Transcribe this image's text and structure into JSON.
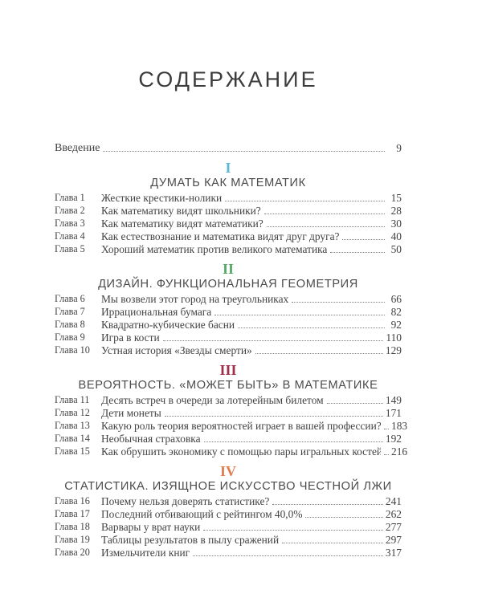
{
  "page_title": "СОДЕРЖАНИЕ",
  "intro": {
    "label": "Введение",
    "page": "9"
  },
  "text_color": "#424242",
  "sections": [
    {
      "numeral": "I",
      "color": "#5bb7d7",
      "heading": "ДУМАТЬ КАК МАТЕМАТИК",
      "chapters": [
        {
          "label": "Глава 1",
          "title": "Жесткие крестики-нолики",
          "page": "15"
        },
        {
          "label": "Глава 2",
          "title": "Как математику видят школьники?",
          "page": "28"
        },
        {
          "label": "Глава 3",
          "title": "Как математику видят математики?",
          "page": "30"
        },
        {
          "label": "Глава 4",
          "title": "Как естествознание и математика видят друг друга?",
          "page": "40"
        },
        {
          "label": "Глава 5",
          "title": "Хороший математик против великого математика",
          "page": "50"
        }
      ]
    },
    {
      "numeral": "II",
      "color": "#55a966",
      "heading": "ДИЗАЙН. ФУНКЦИОНАЛЬНАЯ ГЕОМЕТРИЯ",
      "chapters": [
        {
          "label": "Глава 6",
          "title": "Мы возвели этот город на треугольниках",
          "page": "66"
        },
        {
          "label": "Глава 7",
          "title": "Иррациональная бумага",
          "page": "82"
        },
        {
          "label": "Глава 8",
          "title": "Квадратно-кубические басни",
          "page": "92"
        },
        {
          "label": "Глава 9",
          "title": "Игра в кости",
          "page": "110"
        },
        {
          "label": "Глава 10",
          "title": "Устная история «Звезды смерти»",
          "page": "129"
        }
      ]
    },
    {
      "numeral": "III",
      "color": "#a22c49",
      "heading": "ВЕРОЯТНОСТЬ. «МОЖЕТ БЫТЬ» В МАТЕМАТИКЕ",
      "chapters": [
        {
          "label": "Глава 11",
          "title": "Десять встреч в очереди за лотерейным билетом",
          "page": "149"
        },
        {
          "label": "Глава 12",
          "title": "Дети монеты",
          "page": "171"
        },
        {
          "label": "Глава 13",
          "title": "Какую роль теория вероятностей играет в вашей профессии?",
          "page": "183"
        },
        {
          "label": "Глава 14",
          "title": "Необычная страховка",
          "page": "192"
        },
        {
          "label": "Глава 15",
          "title": "Как обрушить экономику с помощью пары игральных костей",
          "page": "216"
        }
      ]
    },
    {
      "numeral": "IV",
      "color": "#e07b4e",
      "heading": "СТАТИСТИКА. ИЗЯЩНОЕ ИСКУССТВО ЧЕСТНОЙ ЛЖИ",
      "chapters": [
        {
          "label": "Глава 16",
          "title": "Почему нельзя доверять статистике?",
          "page": "241"
        },
        {
          "label": "Глава 17",
          "title": "Последний отбивающий с рейтингом 40,0%",
          "page": "262"
        },
        {
          "label": "Глава 18",
          "title": "Варвары у врат науки",
          "page": "277"
        },
        {
          "label": "Глава 19",
          "title": "Таблицы результатов в пылу сражений",
          "page": "297"
        },
        {
          "label": "Глава 20",
          "title": "Измельчители книг",
          "page": "317"
        }
      ]
    }
  ]
}
